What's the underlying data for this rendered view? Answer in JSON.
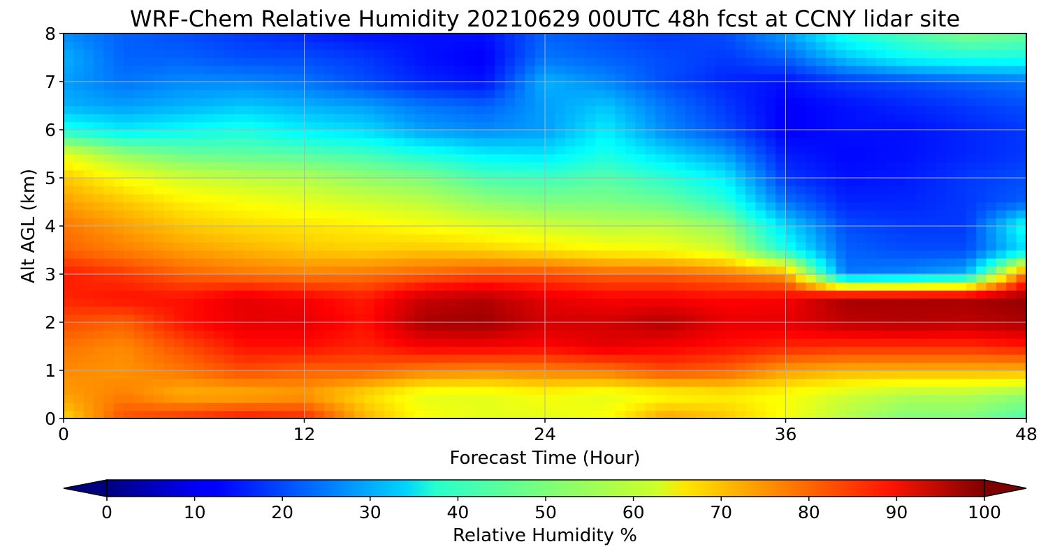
{
  "chart_data": {
    "type": "heatmap",
    "title": "WRF-Chem Relative Humidity 20210629 00UTC 48h fcst at CCNY lidar site",
    "xlabel": "Forecast Time (Hour)",
    "ylabel": "Alt AGL (km)",
    "xlim": [
      0,
      48
    ],
    "ylim": [
      0,
      8
    ],
    "xticks": [
      "0",
      "12",
      "24",
      "36",
      "48"
    ],
    "yticks": [
      "0",
      "1",
      "2",
      "3",
      "4",
      "5",
      "6",
      "7",
      "8"
    ],
    "grid": true,
    "colormap": "jet",
    "colorbar": {
      "label": "Relative Humidity %",
      "range": [
        0,
        100
      ],
      "extend": "both",
      "orientation": "horizontal",
      "ticks": [
        "0",
        "10",
        "20",
        "30",
        "40",
        "50",
        "60",
        "70",
        "80",
        "90",
        "100"
      ]
    },
    "field_units": "%",
    "field_description": "approximate relative humidity (%) estimated from the colored field; rows = altitude (km), columns = forecast hour",
    "x": [
      0,
      3,
      6,
      9,
      12,
      15,
      18,
      21,
      24,
      27,
      30,
      33,
      36,
      39,
      42,
      45,
      48
    ],
    "y": [
      0,
      0.5,
      1,
      1.5,
      2,
      2.5,
      3,
      3.5,
      4,
      4.5,
      5,
      5.5,
      6,
      6.5,
      7,
      7.5,
      8
    ],
    "z": [
      [
        66,
        80,
        83,
        86,
        84,
        70,
        62,
        60,
        60,
        62,
        72,
        68,
        62,
        55,
        50,
        50,
        45
      ],
      [
        72,
        75,
        70,
        70,
        72,
        66,
        60,
        60,
        62,
        60,
        62,
        64,
        62,
        58,
        55,
        55,
        52
      ],
      [
        74,
        73,
        76,
        80,
        78,
        78,
        75,
        74,
        75,
        76,
        80,
        78,
        72,
        70,
        70,
        70,
        70
      ],
      [
        76,
        74,
        80,
        86,
        86,
        84,
        88,
        88,
        87,
        90,
        88,
        86,
        84,
        83,
        83,
        83,
        85
      ],
      [
        80,
        78,
        86,
        90,
        90,
        86,
        96,
        97,
        92,
        92,
        95,
        90,
        90,
        94,
        95,
        94,
        96
      ],
      [
        84,
        86,
        86,
        90,
        88,
        85,
        93,
        95,
        90,
        88,
        88,
        87,
        88,
        96,
        96,
        96,
        98
      ],
      [
        85,
        82,
        78,
        76,
        75,
        76,
        78,
        80,
        80,
        78,
        78,
        76,
        72,
        24,
        26,
        30,
        78
      ],
      [
        78,
        75,
        72,
        70,
        68,
        67,
        68,
        67,
        65,
        63,
        62,
        58,
        40,
        22,
        20,
        20,
        35
      ],
      [
        76,
        72,
        68,
        66,
        65,
        64,
        62,
        60,
        58,
        56,
        56,
        52,
        34,
        20,
        18,
        18,
        40
      ],
      [
        72,
        68,
        64,
        62,
        60,
        58,
        56,
        52,
        50,
        50,
        48,
        42,
        24,
        16,
        16,
        18,
        22
      ],
      [
        68,
        62,
        58,
        56,
        55,
        52,
        50,
        45,
        44,
        46,
        42,
        36,
        18,
        14,
        15,
        18,
        20
      ],
      [
        60,
        52,
        48,
        47,
        46,
        44,
        40,
        36,
        35,
        40,
        34,
        28,
        15,
        13,
        14,
        16,
        18
      ],
      [
        40,
        36,
        38,
        40,
        36,
        34,
        28,
        26,
        28,
        36,
        26,
        20,
        12,
        14,
        14,
        16,
        18
      ],
      [
        30,
        28,
        30,
        32,
        30,
        28,
        24,
        22,
        28,
        32,
        24,
        18,
        12,
        14,
        16,
        18,
        20
      ],
      [
        28,
        24,
        26,
        26,
        24,
        20,
        16,
        14,
        30,
        26,
        20,
        16,
        14,
        18,
        20,
        22,
        24
      ],
      [
        30,
        22,
        22,
        20,
        20,
        18,
        14,
        12,
        24,
        22,
        20,
        18,
        22,
        32,
        38,
        40,
        40
      ],
      [
        26,
        22,
        20,
        18,
        16,
        14,
        14,
        14,
        22,
        20,
        18,
        20,
        28,
        40,
        45,
        50,
        48
      ]
    ]
  }
}
